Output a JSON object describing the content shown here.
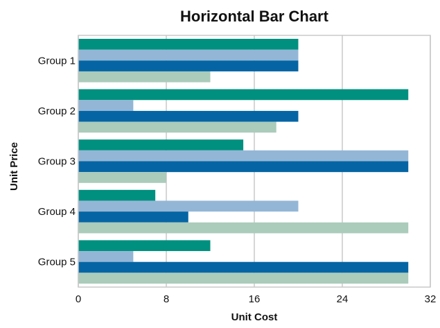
{
  "chart_data": {
    "type": "bar",
    "orientation": "horizontal",
    "title": "Horizontal Bar Chart",
    "xlabel": "Unit Cost",
    "ylabel": "Unit Price",
    "xlim": [
      0,
      32
    ],
    "xticks": [
      "0",
      "8",
      "16",
      "24",
      "32"
    ],
    "grid": true,
    "categories": [
      "Group 1",
      "Group 2",
      "Group 3",
      "Group 4",
      "Group 5"
    ],
    "series": [
      {
        "color": "#00907f",
        "values": [
          20,
          30,
          15,
          7,
          12
        ]
      },
      {
        "color": "#94b6d6",
        "values": [
          20,
          5,
          30,
          20,
          5
        ]
      },
      {
        "color": "#0565a4",
        "values": [
          20,
          20,
          30,
          10,
          30
        ]
      },
      {
        "color": "#abcbbb",
        "values": [
          12,
          18,
          8,
          30,
          30
        ]
      }
    ]
  }
}
